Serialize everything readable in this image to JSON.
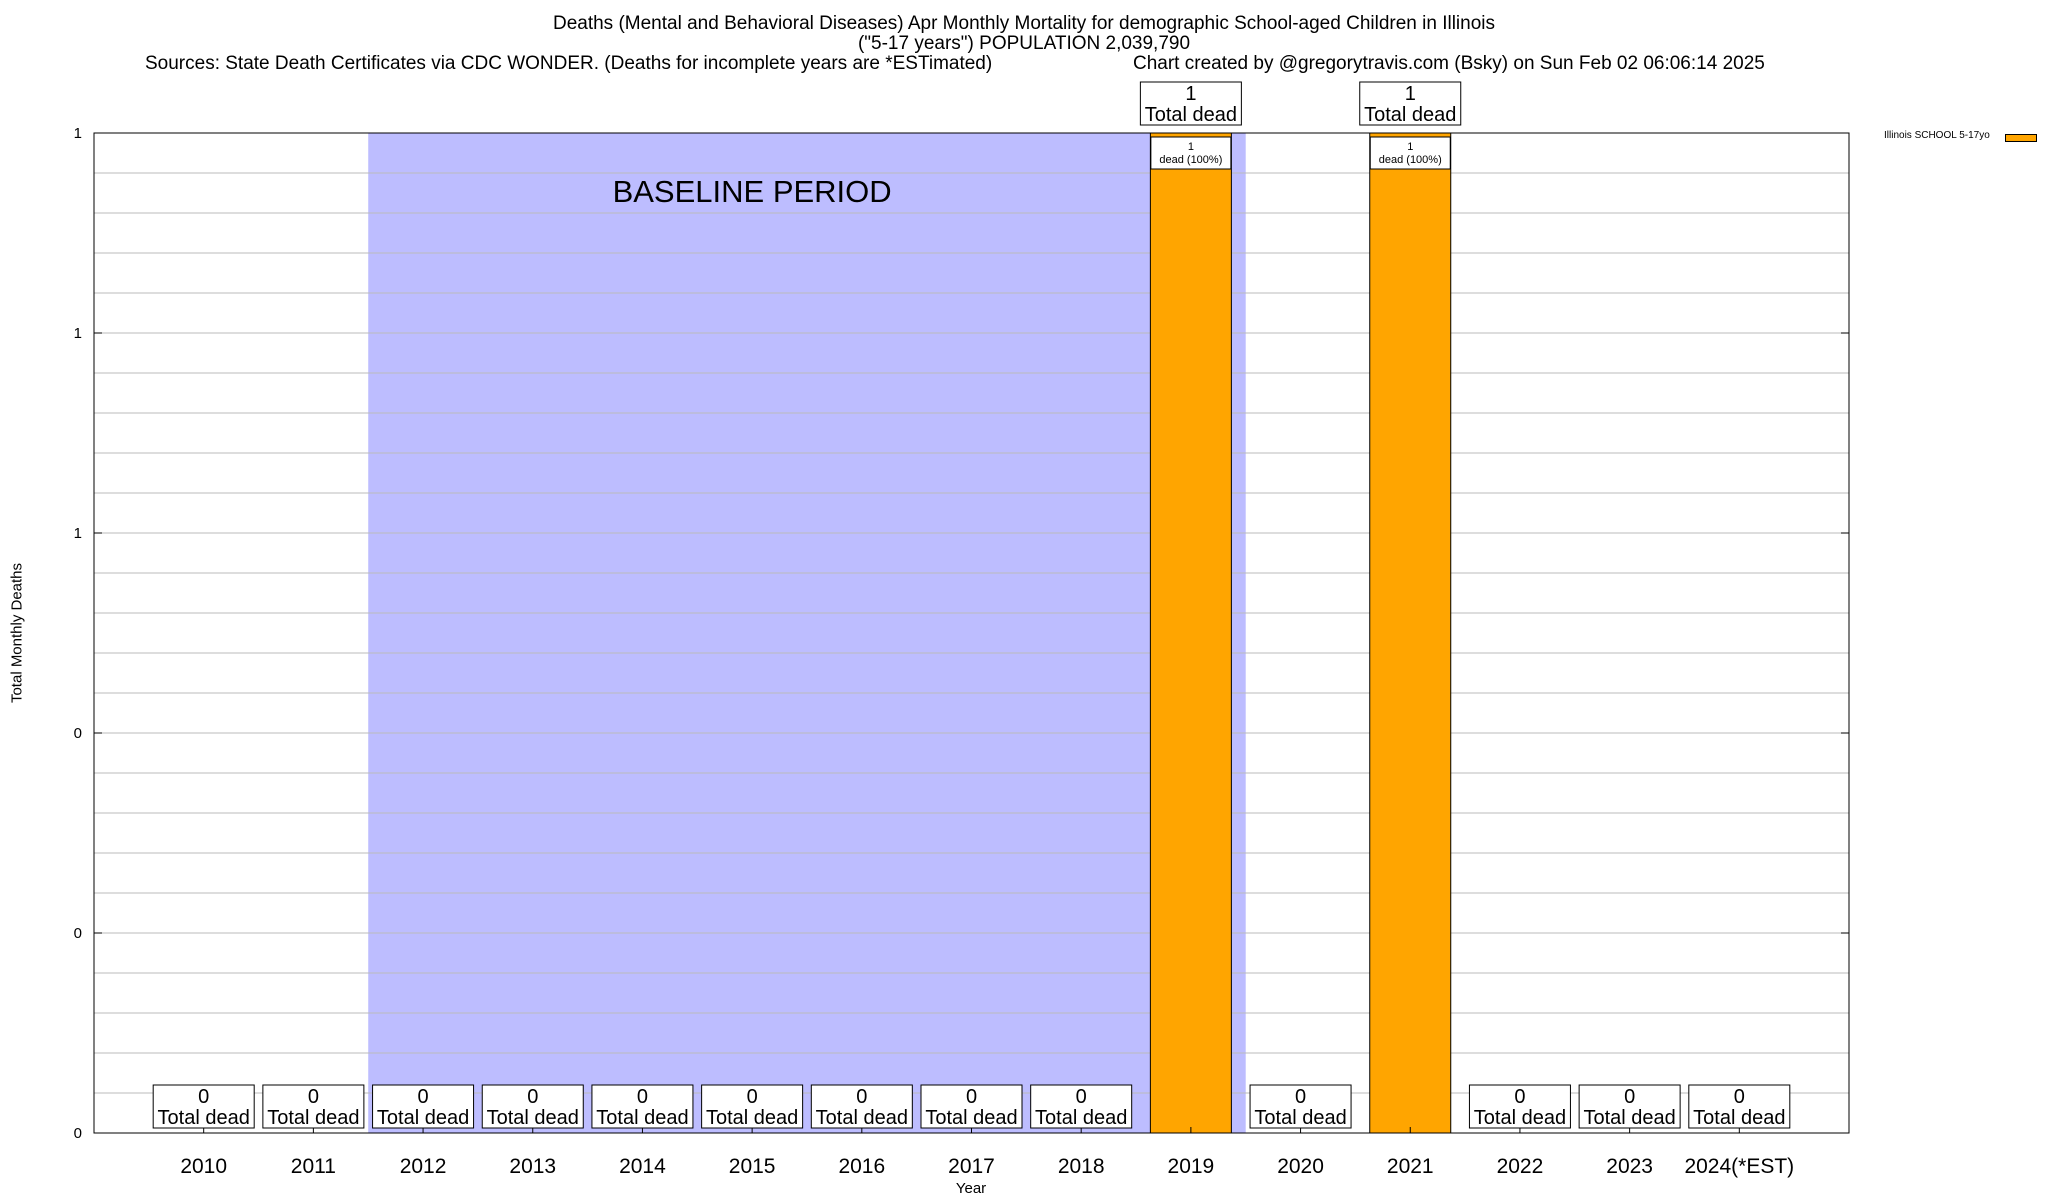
{
  "header": {
    "title_line1": "Deaths (Mental and Behavioral Diseases) Apr Monthly Mortality for demographic School-aged Children in Illinois",
    "title_line2": "(\"5-17 years\") POPULATION 2,039,790",
    "sources": "Sources: State Death Certificates via CDC WONDER. (Deaths for incomplete years are *ESTimated)",
    "credit": "Chart created by @gregorytravis.com (Bsky) on Sun Feb 02 06:06:14 2025"
  },
  "chart_data": {
    "type": "bar",
    "xlabel": "Year",
    "ylabel": "Total Monthly Deaths",
    "categories": [
      "2010",
      "2011",
      "2012",
      "2013",
      "2014",
      "2015",
      "2016",
      "2017",
      "2018",
      "2019",
      "2020",
      "2021",
      "2022",
      "2023",
      "2024(*EST)"
    ],
    "series": [
      {
        "name": "Illinois SCHOOL 5-17yo",
        "values": [
          0,
          0,
          0,
          0,
          0,
          0,
          0,
          0,
          0,
          1,
          0,
          1,
          0,
          0,
          0
        ]
      }
    ],
    "ylim": [
      0,
      1
    ],
    "yticks": [
      0,
      0.2,
      0.4,
      0.6,
      0.8,
      1
    ],
    "ytick_labels": [
      "0",
      "0",
      "0",
      "1",
      "1",
      "1"
    ],
    "total_labels": [
      "0",
      "0",
      "0",
      "0",
      "0",
      "0",
      "0",
      "0",
      "0",
      "1",
      "0",
      "1",
      "0",
      "0",
      "0"
    ],
    "total_caption": "Total dead",
    "inner_labels": [
      {
        "category": "2019",
        "line1": "1",
        "line2": "dead (100%)"
      },
      {
        "category": "2021",
        "line1": "1",
        "line2": "dead (100%)"
      }
    ],
    "baseline": {
      "label": "BASELINE PERIOD",
      "from": "2012",
      "to": "2019"
    },
    "legend": {
      "position": "top-right outside plot"
    },
    "grid": true,
    "colors": {
      "bar": "#FFA500",
      "baseline": "#BDBDFF",
      "grid": "#BBBBBB"
    }
  }
}
